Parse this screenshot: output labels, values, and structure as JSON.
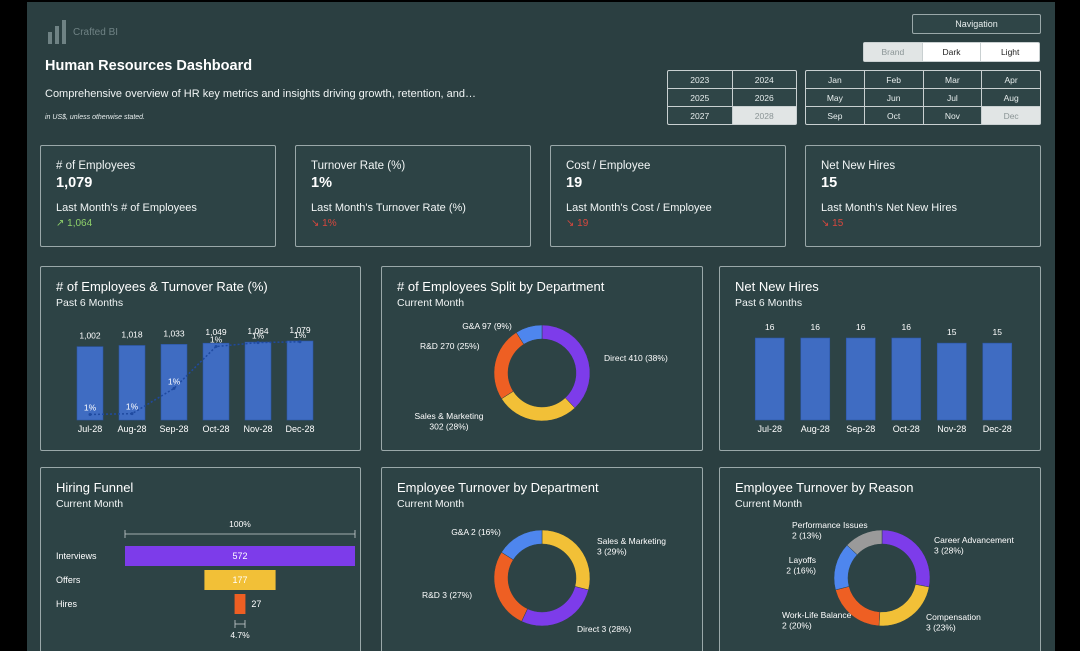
{
  "brand": {
    "logo_text": "Crafted BI"
  },
  "header": {
    "title": "Human Resources Dashboard",
    "subtitle": "Comprehensive overview of HR key metrics and insights driving growth, retention, and…",
    "note": "in US$, unless otherwise stated."
  },
  "nav": {
    "navigation_label": "Navigation"
  },
  "theme": {
    "options": [
      {
        "label": "Brand",
        "active": false
      },
      {
        "label": "Dark",
        "active": true
      },
      {
        "label": "Light",
        "active": true
      }
    ]
  },
  "years": [
    {
      "label": "2023",
      "disabled": false
    },
    {
      "label": "2024",
      "disabled": false
    },
    {
      "label": "2025",
      "disabled": false
    },
    {
      "label": "2026",
      "disabled": false
    },
    {
      "label": "2027",
      "disabled": false
    },
    {
      "label": "2028",
      "disabled": true
    }
  ],
  "months": [
    {
      "label": "Jan",
      "disabled": false
    },
    {
      "label": "Feb",
      "disabled": false
    },
    {
      "label": "Mar",
      "disabled": false
    },
    {
      "label": "Apr",
      "disabled": false
    },
    {
      "label": "May",
      "disabled": false
    },
    {
      "label": "Jun",
      "disabled": false
    },
    {
      "label": "Jul",
      "disabled": false
    },
    {
      "label": "Aug",
      "disabled": false
    },
    {
      "label": "Sep",
      "disabled": false
    },
    {
      "label": "Oct",
      "disabled": false
    },
    {
      "label": "Nov",
      "disabled": false
    },
    {
      "label": "Dec",
      "disabled": true
    }
  ],
  "kpis": [
    {
      "label": "# of Employees",
      "value": "1,079",
      "last_label": "Last Month's # of Employees",
      "last_value": "↗ 1,064",
      "trend": "up"
    },
    {
      "label": "Turnover Rate (%)",
      "value": "1%",
      "last_label": "Last Month's Turnover Rate (%)",
      "last_value": "↘ 1%",
      "trend": "down"
    },
    {
      "label": "Cost / Employee",
      "value": "19",
      "last_label": "Last Month's Cost / Employee",
      "last_value": "↘ 19",
      "trend": "down"
    },
    {
      "label": "Net New Hires",
      "value": "15",
      "last_label": "Last Month's Net New Hires",
      "last_value": "↘ 15",
      "trend": "down"
    }
  ],
  "colors": {
    "bar": "#3f6cc2",
    "line": "#1f4aa0",
    "purple": "#7d3cea",
    "yellow": "#f2c037",
    "orange": "#ee5f23",
    "blue": "#4e86ee",
    "gray": "#9a9a9a",
    "up": "#8fd16a",
    "down": "#d9473e"
  },
  "chart_data": [
    {
      "id": "emp_turnover",
      "type": "bar",
      "title": "# of Employees & Turnover Rate (%)",
      "subtitle": "Past 6 Months",
      "categories": [
        "Jul-28",
        "Aug-28",
        "Sep-28",
        "Oct-28",
        "Nov-28",
        "Dec-28"
      ],
      "series": [
        {
          "name": "",
          "type": "bar",
          "values": [
            1002,
            1018,
            1033,
            1049,
            1064,
            1079
          ],
          "labels": [
            "1,002",
            "1,018",
            "1,033",
            "1,049",
            "1,064",
            "1,079"
          ]
        },
        {
          "name": "",
          "type": "line",
          "values": [
            1,
            1,
            1,
            1,
            1,
            1
          ],
          "labels": [
            "1%",
            "1%",
            "1%",
            "1%",
            "1%",
            "1%"
          ],
          "relative_level": [
            0.07,
            0.08,
            0.4,
            0.93,
            0.98,
            0.99
          ]
        }
      ],
      "ylim": [
        0,
        1079
      ]
    },
    {
      "id": "emp_dept",
      "type": "pie",
      "title": "# of Employees Split by Department",
      "subtitle": "Current Month",
      "slices": [
        {
          "label": "Direct 410 (38%)",
          "value": 410,
          "color": "#7d3cea"
        },
        {
          "label": "Sales & Marketing 302 (28%)",
          "value": 302,
          "color": "#f2c037"
        },
        {
          "label": "R&D 270 (25%)",
          "value": 270,
          "color": "#ee5f23"
        },
        {
          "label": "G&A 97 (9%)",
          "value": 97,
          "color": "#4e86ee"
        }
      ]
    },
    {
      "id": "net_hires",
      "type": "bar",
      "title": "Net New Hires",
      "subtitle": "Past 6 Months",
      "categories": [
        "Jul-28",
        "Aug-28",
        "Sep-28",
        "Oct-28",
        "Nov-28",
        "Dec-28"
      ],
      "values": [
        16,
        16,
        16,
        16,
        15,
        15
      ],
      "ylim": [
        0,
        16
      ]
    },
    {
      "id": "funnel",
      "type": "bar",
      "title": "Hiring Funnel",
      "subtitle": "Current Month",
      "categories": [
        "Interviews",
        "Offers",
        "Hires"
      ],
      "values": [
        572,
        177,
        27
      ],
      "colors": [
        "#7d3cea",
        "#f2c037",
        "#ee5f23"
      ],
      "top_label": "100%",
      "bottom_label": "4.7%"
    },
    {
      "id": "turn_dept",
      "type": "pie",
      "title": "Employee Turnover by Department",
      "subtitle": "Current Month",
      "slices": [
        {
          "label": "Sales & Marketing 3 (29%)",
          "value": 29,
          "color": "#f2c037"
        },
        {
          "label": "Direct 3 (28%)",
          "value": 28,
          "color": "#7d3cea"
        },
        {
          "label": "R&D 3 (27%)",
          "value": 27,
          "color": "#ee5f23"
        },
        {
          "label": "G&A 2 (16%)",
          "value": 16,
          "color": "#4e86ee"
        }
      ]
    },
    {
      "id": "turn_reason",
      "type": "pie",
      "title": "Employee Turnover by Reason",
      "subtitle": "Current Month",
      "slices": [
        {
          "label": "Career Advancement 3 (28%)",
          "value": 28,
          "color": "#7d3cea"
        },
        {
          "label": "Compensation 3 (23%)",
          "value": 23,
          "color": "#f2c037"
        },
        {
          "label": "Work-Life Balance 2 (20%)",
          "value": 20,
          "color": "#ee5f23"
        },
        {
          "label": "Layoffs 2 (16%)",
          "value": 16,
          "color": "#4e86ee"
        },
        {
          "label": "Performance Issues 2 (13%)",
          "value": 13,
          "color": "#9a9a9a"
        }
      ]
    }
  ]
}
